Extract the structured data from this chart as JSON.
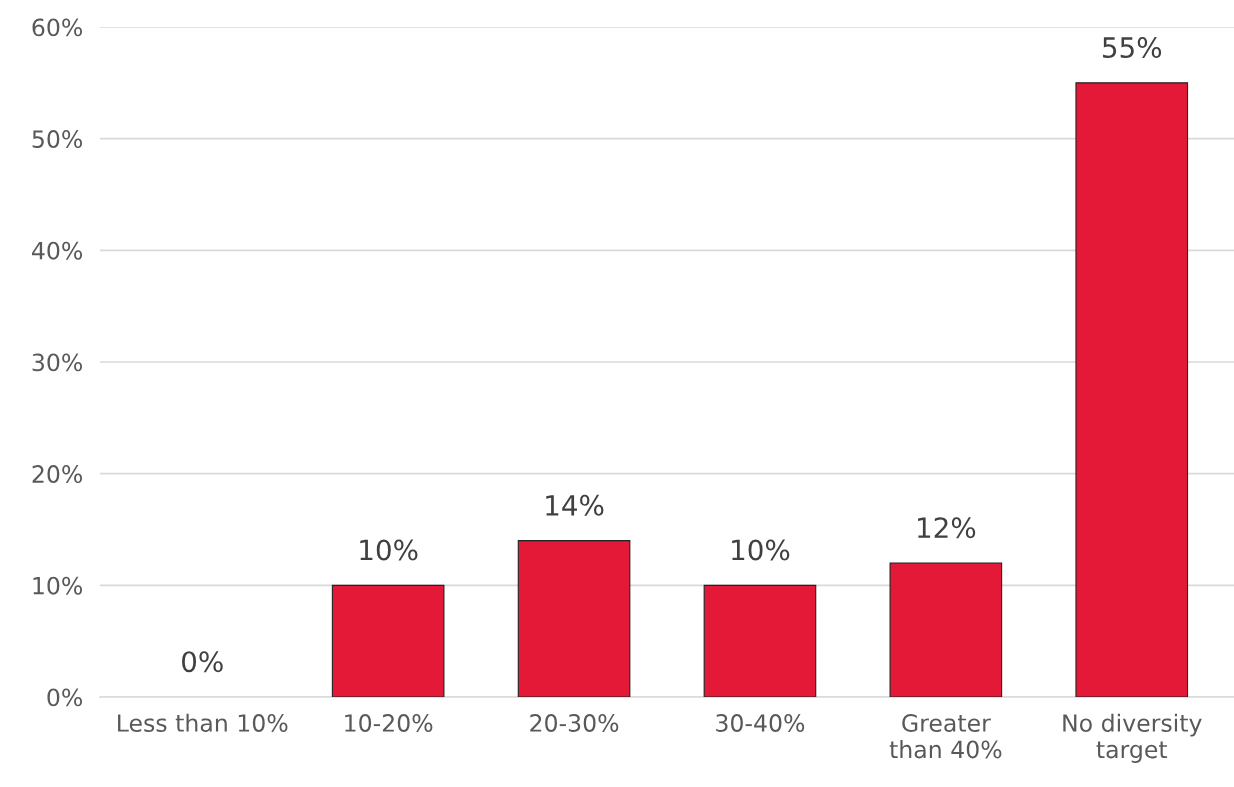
{
  "chart_data": {
    "type": "bar",
    "categories": [
      "Less than 10%",
      "10-20%",
      "20-30%",
      "30-40%",
      "Greater than 40%",
      "No diversity target"
    ],
    "values": [
      0,
      10,
      14,
      10,
      12,
      55
    ],
    "value_labels": [
      "0%",
      "10%",
      "14%",
      "10%",
      "12%",
      "55%"
    ],
    "color": "#e41937",
    "ylim": [
      0,
      60
    ],
    "yticks": [
      {
        "value": 0,
        "label": "0%"
      },
      {
        "value": 10,
        "label": "10%"
      },
      {
        "value": 20,
        "label": "20%"
      },
      {
        "value": 30,
        "label": "30%"
      },
      {
        "value": 40,
        "label": "40%"
      },
      {
        "value": 50,
        "label": "50%"
      },
      {
        "value": 60,
        "label": "60%"
      }
    ],
    "grid": "y",
    "legend": false
  }
}
